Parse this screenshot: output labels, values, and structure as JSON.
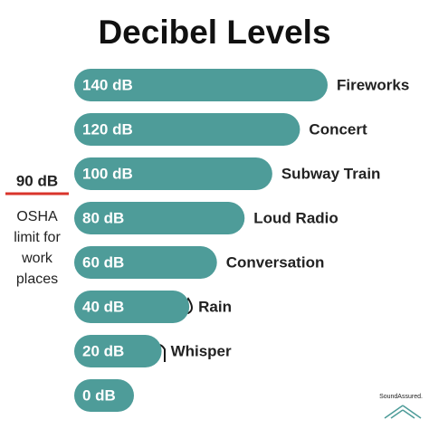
{
  "chart_data": {
    "type": "bar",
    "orientation": "horizontal",
    "title": "Decibel Levels",
    "categories": [
      "Fireworks",
      "Concert",
      "Subway Train",
      "Loud Radio",
      "Conversation",
      "Rain",
      "Whisper",
      null
    ],
    "values": [
      140,
      120,
      100,
      80,
      60,
      40,
      20,
      0
    ],
    "value_labels": [
      "140 dB",
      "120 dB",
      "100 dB",
      "80 dB",
      "60 dB",
      "40 dB",
      "20 dB",
      "0 dB"
    ],
    "color": "#4e9c99",
    "annotations": {
      "limit_label": "90 dB",
      "limit_text": "OSHA limit for work places",
      "limit_color": "#d9342b"
    },
    "logo": "SoundAssured."
  }
}
